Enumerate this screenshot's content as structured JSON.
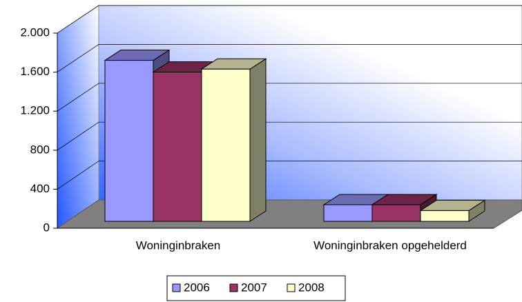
{
  "chart_data": {
    "type": "bar3d",
    "categories": [
      "Woninginbraken",
      "Woninginbraken opgehelderd"
    ],
    "series": [
      {
        "name": "2006",
        "color": "#9999ff",
        "values": [
          1650,
          170
        ]
      },
      {
        "name": "2007",
        "color": "#993366",
        "values": [
          1530,
          170
        ]
      },
      {
        "name": "2008",
        "color": "#ffffcc",
        "values": [
          1560,
          110
        ]
      }
    ],
    "ylim": [
      0,
      2000
    ],
    "yticks": [
      0,
      400,
      800,
      {
        "value": 1200,
        "label": "1.200"
      },
      {
        "value": 1600,
        "label": "1.600"
      },
      {
        "value": 2000,
        "label": "2.000"
      }
    ],
    "grid": true,
    "legend": "bottom"
  }
}
